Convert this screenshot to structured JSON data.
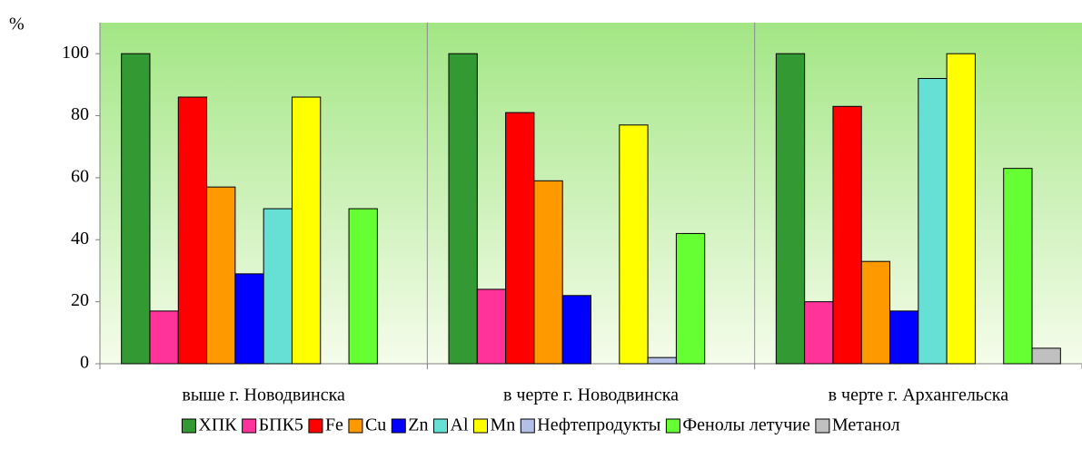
{
  "chart_data": {
    "type": "bar",
    "y_label": "%",
    "categories": [
      "выше г. Новодвинска",
      "в черте г. Новодвинска",
      "в черте г. Архангельска"
    ],
    "series": [
      {
        "name": "ХПК",
        "color": "#339933",
        "values": [
          100,
          100,
          100
        ]
      },
      {
        "name": "БПК5",
        "color": "#ff3399",
        "values": [
          17,
          24,
          20
        ]
      },
      {
        "name": "Fe",
        "color": "#ff0000",
        "values": [
          86,
          81,
          83
        ]
      },
      {
        "name": "Cu",
        "color": "#ff9900",
        "values": [
          57,
          59,
          33
        ]
      },
      {
        "name": "Zn",
        "color": "#0000ff",
        "values": [
          29,
          22,
          17
        ]
      },
      {
        "name": "Al",
        "color": "#66e0d4",
        "values": [
          50,
          null,
          92
        ]
      },
      {
        "name": "Mn",
        "color": "#ffff00",
        "values": [
          86,
          77,
          100
        ]
      },
      {
        "name": "Нефтепродукты",
        "color": "#b3bfe6",
        "values": [
          null,
          2,
          null
        ]
      },
      {
        "name": "Фенолы летучие",
        "color": "#66ff33",
        "values": [
          50,
          42,
          63
        ]
      },
      {
        "name": "Метанол",
        "color": "#c0c0c0",
        "values": [
          null,
          null,
          5
        ]
      }
    ],
    "ylim": [
      0,
      110
    ],
    "yticks": [
      0,
      20,
      40,
      60,
      80,
      100
    ],
    "grid": true,
    "legend": "bottom"
  }
}
